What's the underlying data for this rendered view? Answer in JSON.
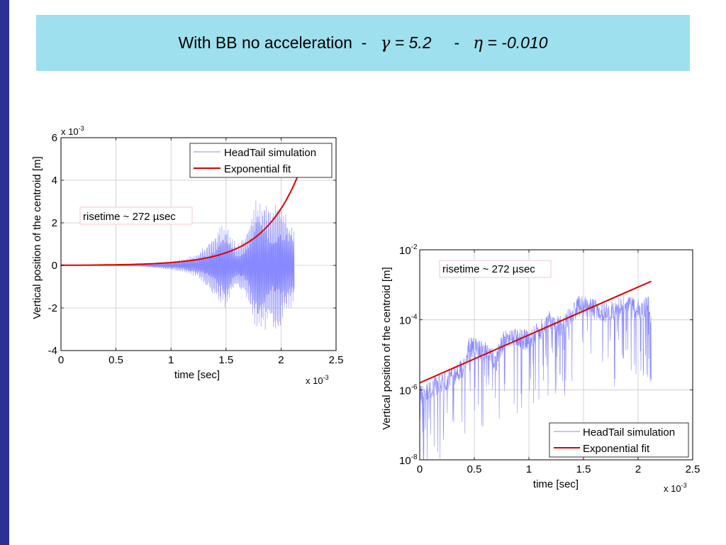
{
  "slide": {
    "title_prefix": "With BB no acceleration",
    "dash": "-",
    "gamma_symbol": "γ",
    "gamma_value": "= 5.2",
    "eta_symbol": "η",
    "eta_value": "= -0.010",
    "colors": {
      "sidebar": "#2b3192",
      "title_bg": "#9ee0ee"
    }
  },
  "chart_data": [
    {
      "type": "line",
      "yscale": "linear",
      "xlabel": "time  [sec]",
      "ylabel": "Vertical position of the centroid  [m]",
      "x_multiplier": "x 10",
      "x_multiplier_exp": "-3",
      "y_multiplier": "x 10",
      "y_multiplier_exp": "-3",
      "xlim": [
        0,
        2.5
      ],
      "ylim": [
        -4,
        6
      ],
      "xticks": [
        "0",
        "0.5",
        "1",
        "1.5",
        "2",
        "2.5"
      ],
      "yticks": [
        "-4",
        "-2",
        "0",
        "2",
        "4",
        "6"
      ],
      "grid": true,
      "legend_position": "top-right",
      "annotation": "risetime ~ 272 µsec",
      "series": [
        {
          "name": "HeadTail simulation",
          "color": "#8888ff",
          "style": "oscillation",
          "x": [
            0,
            0.7,
            0.9,
            1.1,
            1.25,
            1.35,
            1.45,
            1.5,
            1.55,
            1.6,
            1.7,
            1.75,
            1.8,
            1.85,
            1.9,
            1.95,
            2.0,
            2.05,
            2.12
          ],
          "envelope": [
            0,
            0.05,
            0.15,
            0.3,
            0.6,
            1.2,
            1.9,
            2.1,
            1.4,
            1.0,
            1.8,
            2.8,
            3.5,
            3.2,
            2.8,
            3.3,
            3.0,
            2.4,
            1.8
          ]
        },
        {
          "name": "Exponential fit",
          "color": "#dd0000",
          "x0": 0,
          "x1": 2.15,
          "a": 0.0066,
          "rate": 3.0
        }
      ]
    },
    {
      "type": "line",
      "yscale": "log",
      "xlabel": "time  [sec]",
      "ylabel": "Vertical position of the centroid  [m]",
      "x_multiplier": "x 10",
      "x_multiplier_exp": "-3",
      "xlim": [
        0,
        2.5
      ],
      "ylim": [
        1e-08,
        0.01
      ],
      "xticks": [
        "0",
        "0.5",
        "1",
        "1.5",
        "2",
        "2.5"
      ],
      "yticks_base": [
        "10",
        "10",
        "10",
        "10"
      ],
      "yticks_exp": [
        "-8",
        "-6",
        "-4",
        "-2"
      ],
      "grid": true,
      "legend_position": "bottom-right",
      "annotation": "risetime ~ 272 µsec",
      "series": [
        {
          "name": "HeadTail simulation",
          "color": "#8888ff",
          "style": "log-envelope",
          "x": [
            0,
            0.1,
            0.2,
            0.3,
            0.4,
            0.45,
            0.5,
            0.6,
            0.7,
            0.75,
            0.8,
            0.9,
            1.0,
            1.1,
            1.2,
            1.3,
            1.4,
            1.45,
            1.5,
            1.6,
            1.7,
            1.8,
            1.9,
            2.0,
            2.1,
            2.12
          ],
          "peak_log10": [
            -5.9,
            -5.7,
            -5.5,
            -5.3,
            -5.1,
            -4.5,
            -4.5,
            -4.6,
            -4.9,
            -4.4,
            -4.2,
            -4.2,
            -4.3,
            -4.0,
            -3.7,
            -3.9,
            -3.5,
            -3.3,
            -3.3,
            -3.4,
            -3.5,
            -3.4,
            -3.3,
            -3.4,
            -3.3,
            -3.6
          ]
        },
        {
          "name": "Exponential fit",
          "color": "#dd0000",
          "x0": 0,
          "x1": 2.12,
          "log10_start": -5.8,
          "log10_end": -2.9
        }
      ]
    }
  ]
}
